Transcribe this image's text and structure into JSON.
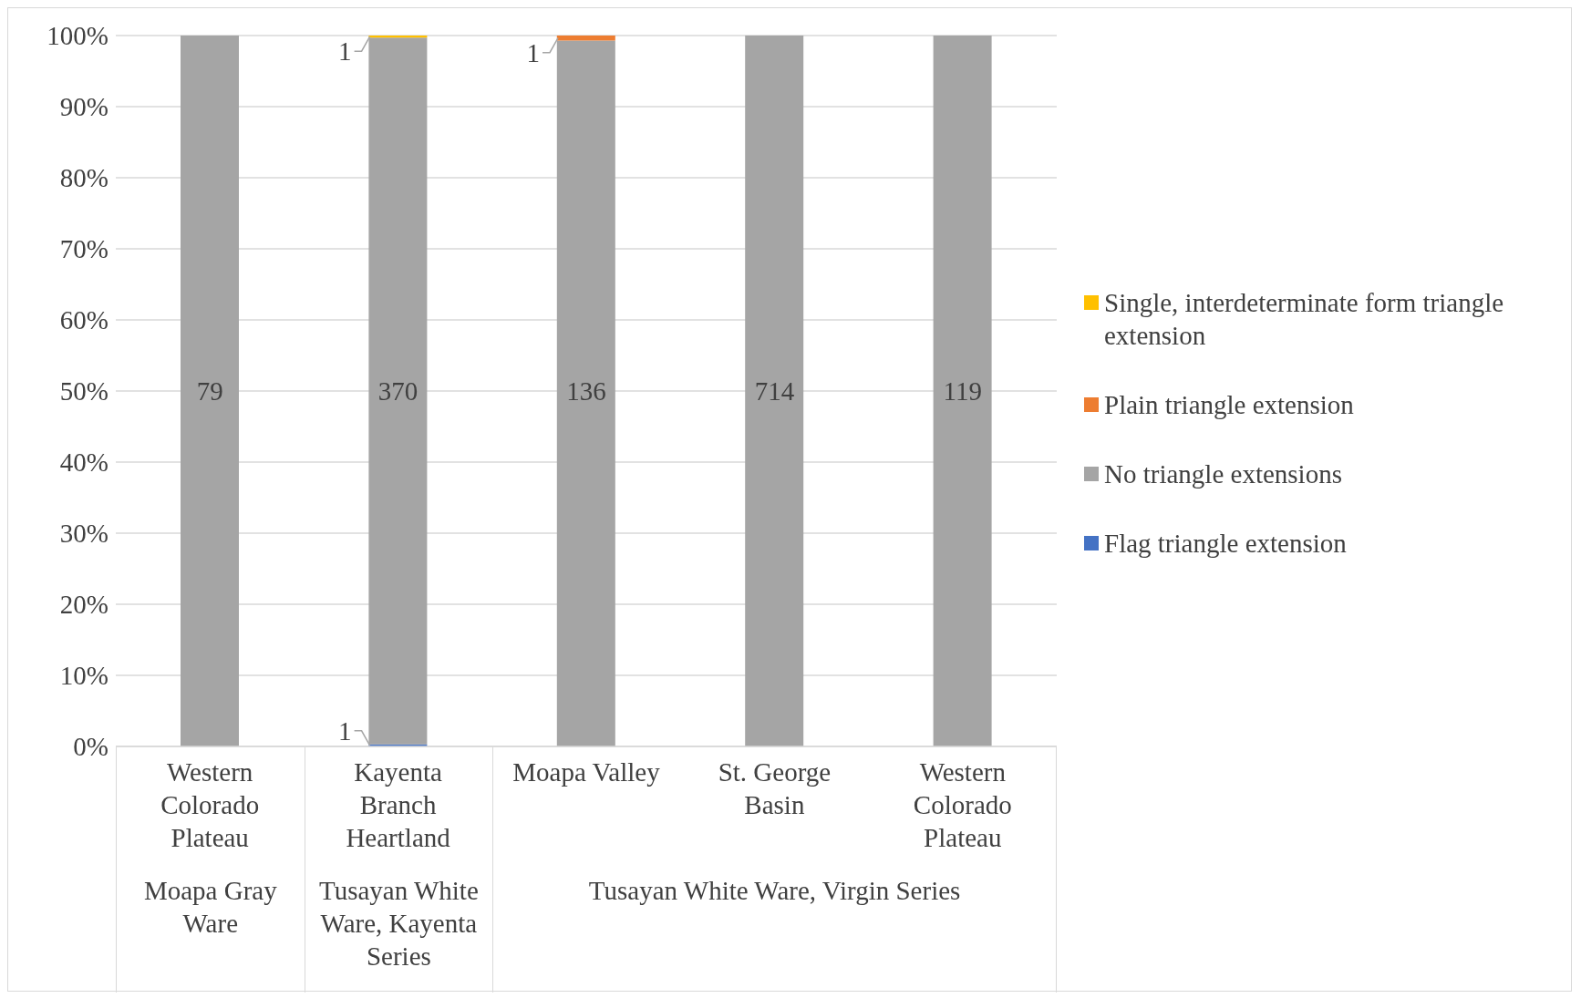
{
  "chart_data": {
    "type": "bar",
    "stacked": true,
    "categories": [
      "Western Colorado Plateau",
      "Kayenta Branch Heartland",
      "Moapa Valley",
      "St. George Basin",
      "Western Colorado Plateau"
    ],
    "annotations": [
      "Moapa Gray Ware",
      "Tusayan White Ware, Kayenta Series",
      "Tusayan White Ware, Virgin Series",
      "79",
      "370",
      "136",
      "714",
      "119",
      {
        "text": "1",
        "x": "Kayenta Branch Heartland",
        "y": 0.15
      },
      {
        "text": "1",
        "x": "Kayenta Branch Heartland",
        "y": 99.85
      },
      {
        "text": "1",
        "x": "Moapa Valley",
        "y": 99.65
      }
    ],
    "series": [
      {
        "name": "Flag triangle extension",
        "color": "#4472c4",
        "values": [
          0,
          0.3,
          0,
          0,
          0
        ]
      },
      {
        "name": "No triangle extensions",
        "color": "#a5a5a5",
        "values": [
          100,
          99.4,
          99.3,
          100,
          100
        ]
      },
      {
        "name": "Plain triangle extension",
        "color": "#ed7d31",
        "values": [
          0,
          0,
          0.7,
          0,
          0
        ]
      },
      {
        "name": "Single, interdeterminate form triangle extension",
        "color": "#ffc000",
        "values": [
          0,
          0.3,
          0,
          0,
          0
        ]
      }
    ],
    "ylim": [
      0,
      100
    ],
    "yticks": [
      {
        "value": 0,
        "label": "0%"
      },
      {
        "value": 10,
        "label": "10%"
      },
      {
        "value": 20,
        "label": "20%"
      },
      {
        "value": 30,
        "label": "30%"
      },
      {
        "value": 40,
        "label": "40%"
      },
      {
        "value": 50,
        "label": "50%"
      },
      {
        "value": 60,
        "label": "60%"
      },
      {
        "value": 70,
        "label": "70%"
      },
      {
        "value": 80,
        "label": "80%"
      },
      {
        "value": 90,
        "label": "90%"
      },
      {
        "value": 100,
        "label": "100%"
      }
    ],
    "grid": "y",
    "legend": "right"
  }
}
